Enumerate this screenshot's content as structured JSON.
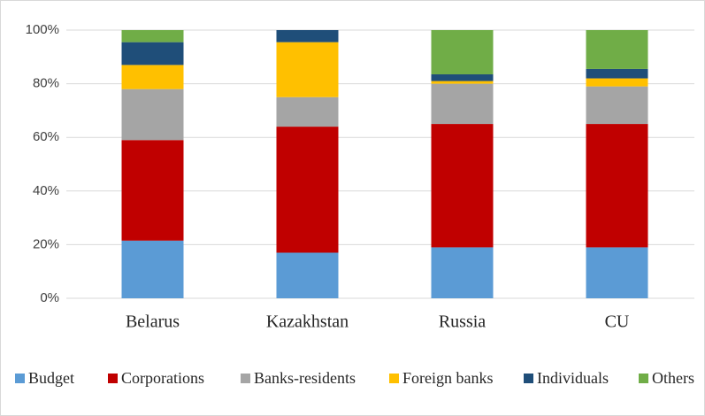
{
  "chart_data": {
    "type": "stacked_bar",
    "categories": [
      "Belarus",
      "Kazakhstan",
      "Russia",
      "CU"
    ],
    "series": [
      {
        "name": "Budget",
        "color": "#5b9bd5",
        "values": [
          21.5,
          17,
          19,
          19
        ]
      },
      {
        "name": "Corporations",
        "color": "#c00000",
        "values": [
          37.5,
          47,
          46,
          46
        ]
      },
      {
        "name": "Banks-residents",
        "color": "#a5a5a5",
        "values": [
          19,
          11,
          15,
          14
        ]
      },
      {
        "name": "Foreign banks",
        "color": "#ffc000",
        "values": [
          9,
          20.5,
          1,
          3
        ]
      },
      {
        "name": "Individuals",
        "color": "#1f4e79",
        "values": [
          8.5,
          4.5,
          2.5,
          3.5
        ]
      },
      {
        "name": "Others",
        "color": "#70ad47",
        "values": [
          4.5,
          0,
          16.5,
          14.5
        ]
      }
    ],
    "ylim": [
      0,
      100
    ],
    "yticks": [
      {
        "value": 0,
        "label": "0%"
      },
      {
        "value": 20,
        "label": "20%"
      },
      {
        "value": 40,
        "label": "40%"
      },
      {
        "value": 60,
        "label": "60%"
      },
      {
        "value": 80,
        "label": "80%"
      },
      {
        "value": 100,
        "label": "100%"
      }
    ],
    "grid": true,
    "legend": "bottom"
  }
}
